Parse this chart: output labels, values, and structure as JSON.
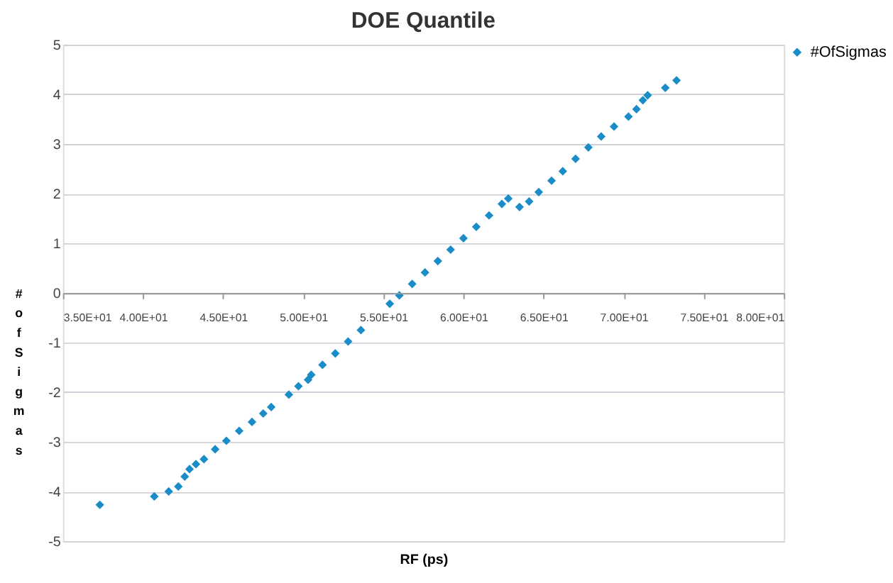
{
  "chart_data": {
    "type": "scatter",
    "title": "DOE Quantile",
    "xlabel": "RF (ps)",
    "ylabel": "# of Sigmas",
    "xlim": [
      35,
      80
    ],
    "xticks": [
      {
        "value": 35,
        "label": "3.50E+01"
      },
      {
        "value": 40,
        "label": "4.00E+01"
      },
      {
        "value": 45,
        "label": "4.50E+01"
      },
      {
        "value": 50,
        "label": "5.00E+01"
      },
      {
        "value": 55,
        "label": "5.50E+01"
      },
      {
        "value": 60,
        "label": "6.00E+01"
      },
      {
        "value": 65,
        "label": "6.50E+01"
      },
      {
        "value": 70,
        "label": "7.00E+01"
      },
      {
        "value": 75,
        "label": "7.50E+01"
      },
      {
        "value": 80,
        "label": "8.00E+01"
      }
    ],
    "ylim": [
      -5,
      5
    ],
    "yticks": [
      -5,
      -4,
      -3,
      -2,
      -1,
      0,
      1,
      2,
      3,
      4,
      5
    ],
    "grid": "y",
    "legend": "right",
    "marker": "diamond",
    "series": [
      {
        "name": "#OfSigmas",
        "color": "#1a8cc8",
        "x": [
          37.3,
          40.7,
          41.6,
          42.2,
          42.6,
          42.9,
          43.3,
          43.8,
          44.5,
          45.2,
          46.0,
          46.8,
          47.5,
          48.0,
          49.1,
          49.7,
          50.3,
          50.5,
          51.2,
          52.0,
          52.8,
          53.6,
          55.4,
          56.0,
          56.8,
          57.6,
          58.4,
          59.2,
          60.0,
          60.8,
          61.6,
          62.4,
          62.8,
          63.5,
          64.1,
          64.7,
          65.5,
          66.2,
          67.0,
          67.8,
          68.6,
          69.4,
          70.3,
          70.8,
          71.2,
          71.5,
          72.6,
          73.3
        ],
        "values": [
          -4.27,
          -4.1,
          -4.0,
          -3.9,
          -3.7,
          -3.55,
          -3.45,
          -3.35,
          -3.15,
          -2.98,
          -2.78,
          -2.6,
          -2.43,
          -2.3,
          -2.05,
          -1.88,
          -1.75,
          -1.65,
          -1.45,
          -1.22,
          -0.98,
          -0.75,
          -0.22,
          -0.05,
          0.18,
          0.41,
          0.64,
          0.87,
          1.1,
          1.33,
          1.56,
          1.79,
          1.9,
          1.73,
          1.84,
          2.03,
          2.26,
          2.45,
          2.7,
          2.93,
          3.15,
          3.35,
          3.55,
          3.7,
          3.88,
          3.98,
          4.13,
          4.28
        ]
      }
    ]
  }
}
